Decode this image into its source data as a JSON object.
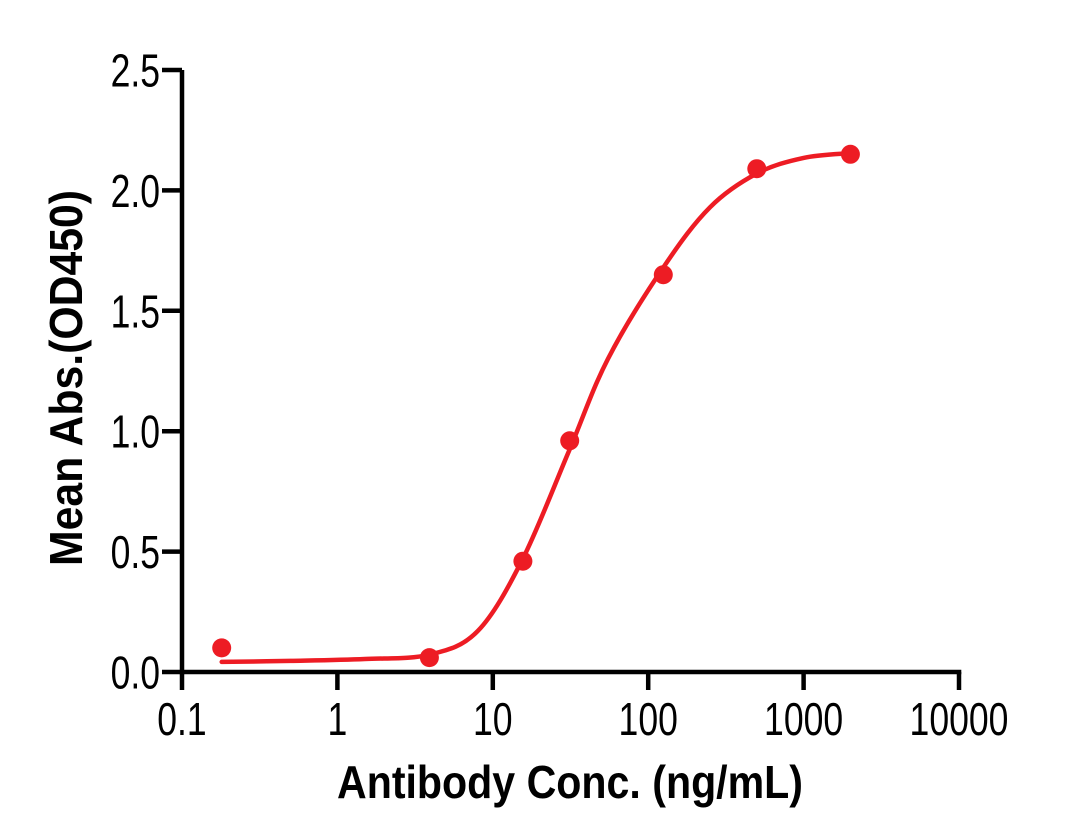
{
  "chart_data": {
    "type": "scatter",
    "title": "",
    "xlabel": "Antibody Conc. (ng/mL)",
    "ylabel": "Mean Abs.(OD450)",
    "x_scale": "log10",
    "xlim": [
      0.1,
      10000
    ],
    "ylim": [
      0.0,
      2.5
    ],
    "x_tick_labels": [
      "0.1",
      "1",
      "10",
      "100",
      "1000",
      "10000"
    ],
    "x_tick_values": [
      0.1,
      1,
      10,
      100,
      1000,
      10000
    ],
    "y_tick_labels": [
      "0.0",
      "0.5",
      "1.0",
      "1.5",
      "2.0",
      "2.5"
    ],
    "y_tick_values": [
      0.0,
      0.5,
      1.0,
      1.5,
      2.0,
      2.5
    ],
    "grid": false,
    "legend": "none",
    "series": [
      {
        "name": "Mean Abs.(OD450)",
        "marker": "filled-circle",
        "color": "#ED1C24",
        "x": [
          0.18,
          3.91,
          15.63,
          31.25,
          125,
          500,
          2000
        ],
        "y": [
          0.1,
          0.06,
          0.46,
          0.96,
          1.65,
          2.09,
          2.15
        ]
      }
    ],
    "fit_curve": {
      "name": "sigmoidal-4pl-fit",
      "color": "#ED1C24",
      "x": [
        0.18,
        0.5,
        1.5,
        3.9,
        8,
        15.6,
        31,
        55,
        125,
        250,
        500,
        1000,
        2000
      ],
      "y": [
        0.042,
        0.046,
        0.054,
        0.072,
        0.17,
        0.47,
        0.92,
        1.3,
        1.68,
        1.93,
        2.07,
        2.135,
        2.155
      ]
    }
  },
  "colors": {
    "accent": "#ED1C24",
    "axis": "#000000",
    "background": "#FFFFFF"
  }
}
